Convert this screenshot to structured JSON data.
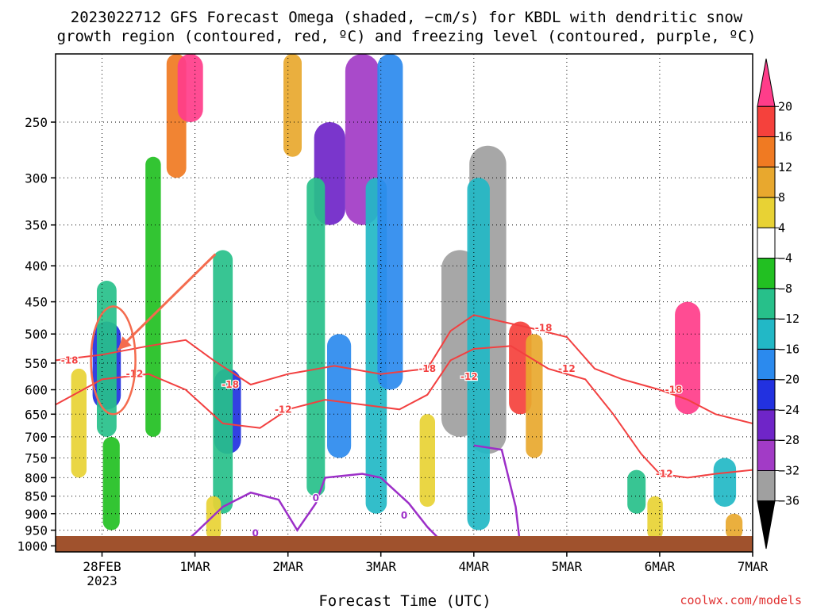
{
  "chart_data": {
    "type": "heatmap",
    "title_line1": "2023022712 GFS Forecast Omega (shaded, −cm/s) for KBDL with dendritic snow",
    "title_line2": "growth region (contoured, red, ºC) and freezing level (contoured, purple, ºC)",
    "xlabel": "Forecast Time (UTC)",
    "credit": "coolwx.com/models",
    "x_ticks": [
      {
        "day": 0,
        "label": "28FEB",
        "sublabel": "2023"
      },
      {
        "day": 1,
        "label": "1MAR",
        "sublabel": ""
      },
      {
        "day": 2,
        "label": "2MAR",
        "sublabel": ""
      },
      {
        "day": 3,
        "label": "3MAR",
        "sublabel": ""
      },
      {
        "day": 4,
        "label": "4MAR",
        "sublabel": ""
      },
      {
        "day": 5,
        "label": "5MAR",
        "sublabel": ""
      },
      {
        "day": 6,
        "label": "6MAR",
        "sublabel": ""
      },
      {
        "day": 7,
        "label": "7MAR",
        "sublabel": ""
      }
    ],
    "x_range_days": [
      -0.5,
      7
    ],
    "y_ticks": [
      250,
      300,
      350,
      400,
      450,
      500,
      550,
      600,
      650,
      700,
      750,
      800,
      850,
      900,
      950,
      1000
    ],
    "y_range_hpa": [
      200,
      1020
    ],
    "y_scale": "log-pressure",
    "grid": "dotted",
    "colorbar": {
      "labels": [
        "20",
        "16",
        "12",
        "8",
        "4",
        "−4",
        "−8",
        "−12",
        "−16",
        "−20",
        "−24",
        "−28",
        "−32",
        "−36"
      ],
      "colors": [
        "#ff3d8a",
        "#f5413c",
        "#f07a22",
        "#e8a82e",
        "#e8d234",
        "#ffffff",
        "#22c022",
        "#27c08a",
        "#22b8c6",
        "#2b8aee",
        "#2231e0",
        "#6f25c8",
        "#a23bc6",
        "#a0a0a0",
        "#000000"
      ]
    },
    "shading_cells": [
      {
        "t": 0.05,
        "p0": 480,
        "p1": 640,
        "v": -24
      },
      {
        "t": 0.05,
        "p0": 420,
        "p1": 700,
        "v": -12
      },
      {
        "t": 0.1,
        "p0": 700,
        "p1": 950,
        "v": -8
      },
      {
        "t": -0.25,
        "p0": 560,
        "p1": 800,
        "v": 6
      },
      {
        "t": 0.8,
        "p0": 200,
        "p1": 300,
        "v": 12
      },
      {
        "t": 0.95,
        "p0": 200,
        "p1": 250,
        "v": 20
      },
      {
        "t": 0.55,
        "p0": 280,
        "p1": 700,
        "v": -6
      },
      {
        "t": 1.35,
        "p0": 560,
        "p1": 740,
        "v": -22
      },
      {
        "t": 1.3,
        "p0": 380,
        "p1": 900,
        "v": -12
      },
      {
        "t": 1.2,
        "p0": 850,
        "p1": 980,
        "v": 5
      },
      {
        "t": 2.05,
        "p0": 200,
        "p1": 280,
        "v": 10
      },
      {
        "t": 2.45,
        "p0": 250,
        "p1": 350,
        "v": -28
      },
      {
        "t": 2.3,
        "p0": 300,
        "p1": 850,
        "v": -10
      },
      {
        "t": 2.55,
        "p0": 500,
        "p1": 750,
        "v": -18
      },
      {
        "t": 2.8,
        "p0": 200,
        "p1": 350,
        "v": -32
      },
      {
        "t": 2.95,
        "p0": 300,
        "p1": 900,
        "v": -14
      },
      {
        "t": 3.1,
        "p0": 200,
        "p1": 600,
        "v": -20
      },
      {
        "t": 3.5,
        "p0": 650,
        "p1": 880,
        "v": 6
      },
      {
        "t": 3.85,
        "p0": 380,
        "p1": 700,
        "v": -36
      },
      {
        "t": 4.15,
        "p0": 270,
        "p1": 740,
        "v": -36
      },
      {
        "t": 4.05,
        "p0": 300,
        "p1": 950,
        "v": -16
      },
      {
        "t": 4.5,
        "p0": 480,
        "p1": 650,
        "v": 16
      },
      {
        "t": 4.65,
        "p0": 500,
        "p1": 750,
        "v": 8
      },
      {
        "t": 5.75,
        "p0": 780,
        "p1": 900,
        "v": -10
      },
      {
        "t": 6.3,
        "p0": 450,
        "p1": 650,
        "v": 20
      },
      {
        "t": 6.7,
        "p0": 750,
        "p1": 880,
        "v": -16
      },
      {
        "t": 6.8,
        "p0": 900,
        "p1": 980,
        "v": 8
      },
      {
        "t": 5.95,
        "p0": 850,
        "p1": 980,
        "v": 6
      }
    ],
    "dgz_contours": [
      {
        "label": "-18",
        "points": [
          [
            -0.5,
            545
          ],
          [
            0,
            535
          ],
          [
            0.5,
            520
          ],
          [
            0.9,
            510
          ],
          [
            1.2,
            545
          ],
          [
            1.6,
            590
          ],
          [
            2.0,
            570
          ],
          [
            2.5,
            555
          ],
          [
            3.0,
            570
          ],
          [
            3.5,
            560
          ],
          [
            3.75,
            495
          ],
          [
            4.0,
            470
          ],
          [
            4.3,
            480
          ],
          [
            4.6,
            490
          ],
          [
            5.0,
            505
          ],
          [
            5.3,
            560
          ],
          [
            5.6,
            580
          ],
          [
            6.0,
            600
          ],
          [
            6.3,
            620
          ],
          [
            6.6,
            650
          ],
          [
            7.0,
            670
          ]
        ]
      },
      {
        "label": "-12",
        "points": [
          [
            -0.5,
            630
          ],
          [
            0,
            580
          ],
          [
            0.5,
            570
          ],
          [
            0.9,
            600
          ],
          [
            1.3,
            670
          ],
          [
            1.7,
            680
          ],
          [
            2.0,
            640
          ],
          [
            2.4,
            620
          ],
          [
            2.8,
            630
          ],
          [
            3.2,
            640
          ],
          [
            3.5,
            610
          ],
          [
            3.75,
            545
          ],
          [
            4.0,
            525
          ],
          [
            4.4,
            520
          ],
          [
            4.8,
            560
          ],
          [
            5.2,
            580
          ],
          [
            5.5,
            650
          ],
          [
            5.8,
            740
          ],
          [
            6.0,
            790
          ],
          [
            6.3,
            800
          ],
          [
            6.6,
            790
          ],
          [
            7.0,
            780
          ]
        ]
      }
    ],
    "dgz_labels": [
      {
        "t": -0.35,
        "p": 545,
        "text": "-18"
      },
      {
        "t": 0.35,
        "p": 570,
        "text": "-12"
      },
      {
        "t": 1.38,
        "p": 590,
        "text": "-18"
      },
      {
        "t": 1.95,
        "p": 640,
        "text": "-12"
      },
      {
        "t": 3.5,
        "p": 560,
        "text": "-18"
      },
      {
        "t": 3.95,
        "p": 575,
        "text": "-12"
      },
      {
        "t": 4.75,
        "p": 490,
        "text": "-18"
      },
      {
        "t": 5.0,
        "p": 560,
        "text": "-12"
      },
      {
        "t": 6.15,
        "p": 600,
        "text": "-18"
      },
      {
        "t": 6.05,
        "p": 790,
        "text": "-12"
      }
    ],
    "freezing_contours": [
      {
        "label": "0",
        "points": [
          [
            0.85,
            1000
          ],
          [
            1.0,
            960
          ],
          [
            1.3,
            880
          ],
          [
            1.6,
            840
          ],
          [
            1.9,
            860
          ],
          [
            2.1,
            950
          ],
          [
            2.3,
            870
          ],
          [
            2.4,
            800
          ],
          [
            2.8,
            790
          ],
          [
            3.0,
            800
          ],
          [
            3.3,
            870
          ],
          [
            3.5,
            940
          ],
          [
            3.7,
            1000
          ]
        ]
      },
      {
        "label": "0",
        "points": [
          [
            4.0,
            720
          ],
          [
            4.3,
            730
          ],
          [
            4.45,
            880
          ],
          [
            4.5,
            1000
          ]
        ]
      }
    ],
    "freezing_labels": [
      {
        "t": 2.3,
        "p": 855,
        "text": "0"
      },
      {
        "t": 3.25,
        "p": 905,
        "text": "0"
      },
      {
        "t": 1.65,
        "p": 960,
        "text": "0"
      }
    ],
    "annotation": {
      "type": "arrow-and-ellipse",
      "color": "#f46b4e"
    }
  }
}
